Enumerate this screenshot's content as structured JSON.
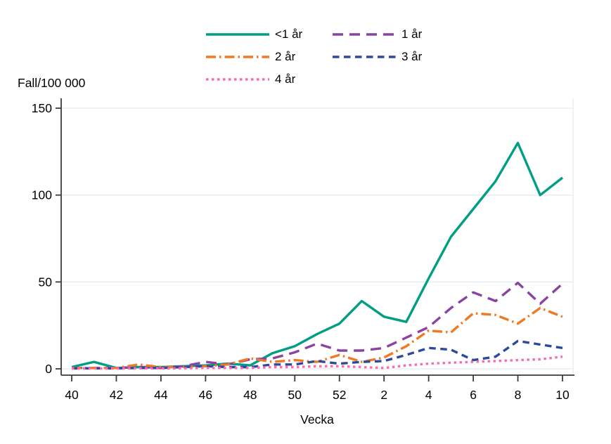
{
  "chart_data": {
    "type": "line",
    "title": "",
    "ylabel": "Fall/100 000",
    "xlabel": "Vecka",
    "ylim": [
      0,
      150
    ],
    "y_ticks": [
      0,
      50,
      100,
      150
    ],
    "grid": "horizontal",
    "legend_position": "top-center",
    "categories": [
      "40",
      "41",
      "42",
      "43",
      "44",
      "45",
      "46",
      "47",
      "48",
      "49",
      "50",
      "51",
      "52",
      "1",
      "2",
      "3",
      "4",
      "5",
      "6",
      "7",
      "8",
      "9",
      "10"
    ],
    "x_tick_indices": [
      0,
      2,
      4,
      6,
      8,
      10,
      12,
      14,
      16,
      18,
      20,
      22
    ],
    "x_tick_labels": [
      "40",
      "42",
      "44",
      "46",
      "48",
      "50",
      "52",
      "2",
      "4",
      "6",
      "8",
      "10"
    ],
    "series": [
      {
        "name": "<1 år",
        "color": "#009E82",
        "dash": "solid",
        "values": [
          1,
          4,
          0.5,
          1,
          1,
          1.5,
          2,
          3,
          2,
          9,
          13,
          20,
          26,
          39,
          30,
          27,
          52,
          76,
          92,
          108,
          130,
          100,
          110
        ]
      },
      {
        "name": "1 år",
        "color": "#8A42A3",
        "dash": "longdash",
        "values": [
          0.5,
          0.5,
          0.5,
          1,
          0.5,
          1.5,
          4,
          2.5,
          5.5,
          6,
          9.5,
          14.5,
          10.5,
          10.5,
          12,
          18,
          24,
          35,
          44,
          39,
          49.5,
          37.5,
          49
        ]
      },
      {
        "name": "2 år",
        "color": "#EE7A23",
        "dash": "dashdot",
        "values": [
          0.5,
          0.5,
          0.5,
          2.5,
          1,
          1,
          1.5,
          2.5,
          6,
          4,
          5,
          4,
          8,
          4,
          6.5,
          13,
          22,
          21,
          32,
          31,
          26,
          35,
          30
        ]
      },
      {
        "name": "3 år",
        "color": "#2B4A9C",
        "dash": "dash",
        "values": [
          0.3,
          0.3,
          0.3,
          0.5,
          0.5,
          1,
          1.5,
          1,
          1,
          2.5,
          2.5,
          4.5,
          3,
          4,
          4.5,
          8,
          12,
          11,
          5,
          7,
          16,
          14,
          12
        ]
      },
      {
        "name": "4 år",
        "color": "#F56EB4",
        "dash": "dot",
        "values": [
          0.2,
          0.2,
          0.2,
          0.3,
          0.3,
          0.3,
          0.5,
          0.5,
          0.5,
          1,
          1,
          1.5,
          1.5,
          1,
          0.5,
          2,
          3,
          3.5,
          4,
          4.5,
          5,
          5.5,
          7
        ]
      }
    ],
    "colors": {
      "grid": "#E4EDF1",
      "axis": "#3A3A3A",
      "text": "#000000",
      "background": "#FFFFFF"
    }
  }
}
